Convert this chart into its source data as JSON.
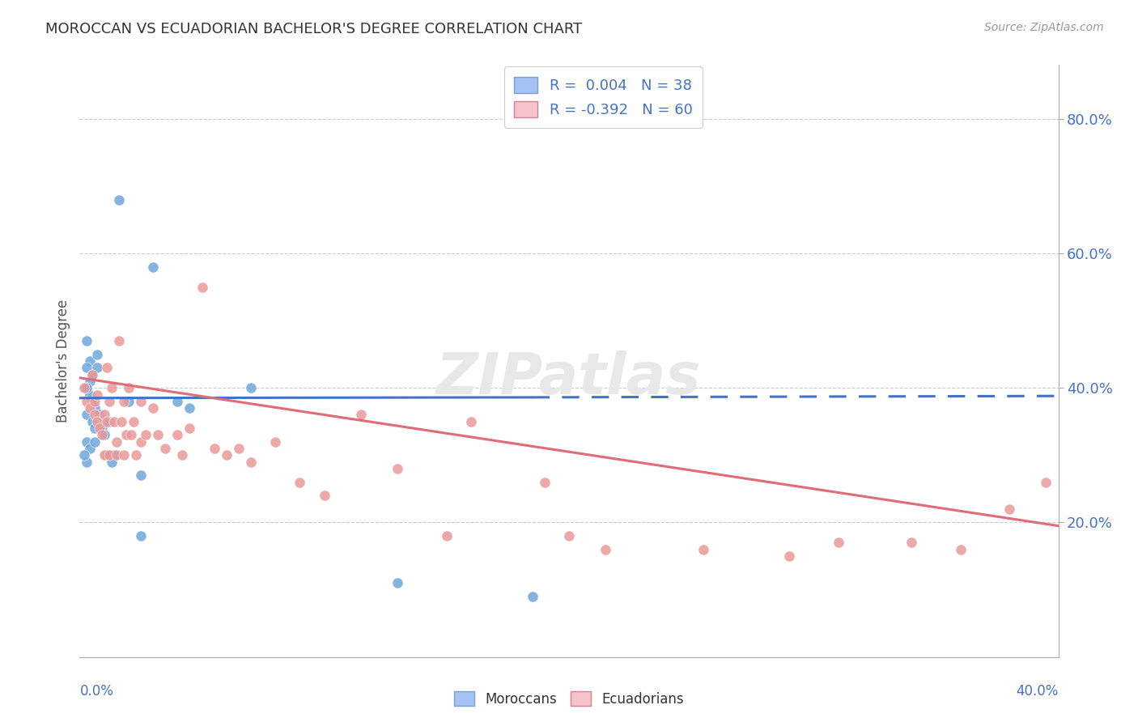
{
  "title": "MOROCCAN VS ECUADORIAN BACHELOR'S DEGREE CORRELATION CHART",
  "source": "Source: ZipAtlas.com",
  "ylabel": "Bachelor's Degree",
  "ytick_labels": [
    "20.0%",
    "40.0%",
    "60.0%",
    "80.0%"
  ],
  "ytick_values": [
    0.2,
    0.4,
    0.6,
    0.8
  ],
  "xlim": [
    0.0,
    0.4
  ],
  "ylim": [
    0.0,
    0.88
  ],
  "legend_moroccan": "R =  0.004   N = 38",
  "legend_ecuadorian": "R = -0.392   N = 60",
  "moroccan_color": "#6fa8dc",
  "ecuadorian_color": "#ea9999",
  "moroccan_line_color": "#4472c4",
  "ecuadorian_line_color": "#e06c75",
  "watermark": "ZIPatlas",
  "moroccan_line_x0": 0.0,
  "moroccan_line_y0": 0.385,
  "moroccan_line_x1": 0.185,
  "moroccan_line_y1": 0.386,
  "moroccan_line_xdash0": 0.185,
  "moroccan_line_ydash0": 0.386,
  "moroccan_line_xdash1": 0.4,
  "moroccan_line_ydash1": 0.388,
  "ecuadorian_line_x0": 0.0,
  "ecuadorian_line_y0": 0.415,
  "ecuadorian_line_x1": 0.4,
  "ecuadorian_line_y1": 0.195,
  "moroccan_x": [
    0.003,
    0.004,
    0.003,
    0.004,
    0.005,
    0.003,
    0.005,
    0.006,
    0.007,
    0.004,
    0.003,
    0.005,
    0.006,
    0.008,
    0.007,
    0.009,
    0.01,
    0.01,
    0.012,
    0.011,
    0.014,
    0.013,
    0.016,
    0.003,
    0.004,
    0.003,
    0.002,
    0.003,
    0.006,
    0.02,
    0.025,
    0.04,
    0.07,
    0.045,
    0.03,
    0.13,
    0.025,
    0.185
  ],
  "moroccan_y": [
    0.47,
    0.44,
    0.43,
    0.41,
    0.42,
    0.4,
    0.38,
    0.37,
    0.45,
    0.39,
    0.36,
    0.35,
    0.34,
    0.36,
    0.43,
    0.34,
    0.33,
    0.35,
    0.35,
    0.3,
    0.3,
    0.29,
    0.68,
    0.32,
    0.31,
    0.29,
    0.3,
    0.4,
    0.32,
    0.38,
    0.27,
    0.38,
    0.4,
    0.37,
    0.58,
    0.11,
    0.18,
    0.09
  ],
  "ecuadorian_x": [
    0.002,
    0.003,
    0.004,
    0.005,
    0.006,
    0.006,
    0.007,
    0.007,
    0.008,
    0.009,
    0.01,
    0.01,
    0.011,
    0.011,
    0.012,
    0.012,
    0.013,
    0.014,
    0.015,
    0.015,
    0.016,
    0.017,
    0.018,
    0.018,
    0.019,
    0.02,
    0.021,
    0.022,
    0.023,
    0.025,
    0.025,
    0.027,
    0.03,
    0.032,
    0.035,
    0.04,
    0.042,
    0.045,
    0.05,
    0.055,
    0.06,
    0.065,
    0.07,
    0.08,
    0.09,
    0.1,
    0.115,
    0.13,
    0.15,
    0.16,
    0.19,
    0.2,
    0.215,
    0.255,
    0.29,
    0.31,
    0.34,
    0.36,
    0.38,
    0.395
  ],
  "ecuadorian_y": [
    0.4,
    0.38,
    0.37,
    0.42,
    0.38,
    0.36,
    0.39,
    0.35,
    0.34,
    0.33,
    0.36,
    0.3,
    0.43,
    0.35,
    0.38,
    0.3,
    0.4,
    0.35,
    0.32,
    0.3,
    0.47,
    0.35,
    0.38,
    0.3,
    0.33,
    0.4,
    0.33,
    0.35,
    0.3,
    0.38,
    0.32,
    0.33,
    0.37,
    0.33,
    0.31,
    0.33,
    0.3,
    0.34,
    0.55,
    0.31,
    0.3,
    0.31,
    0.29,
    0.32,
    0.26,
    0.24,
    0.36,
    0.28,
    0.18,
    0.35,
    0.26,
    0.18,
    0.16,
    0.16,
    0.15,
    0.17,
    0.17,
    0.16,
    0.22,
    0.26
  ]
}
